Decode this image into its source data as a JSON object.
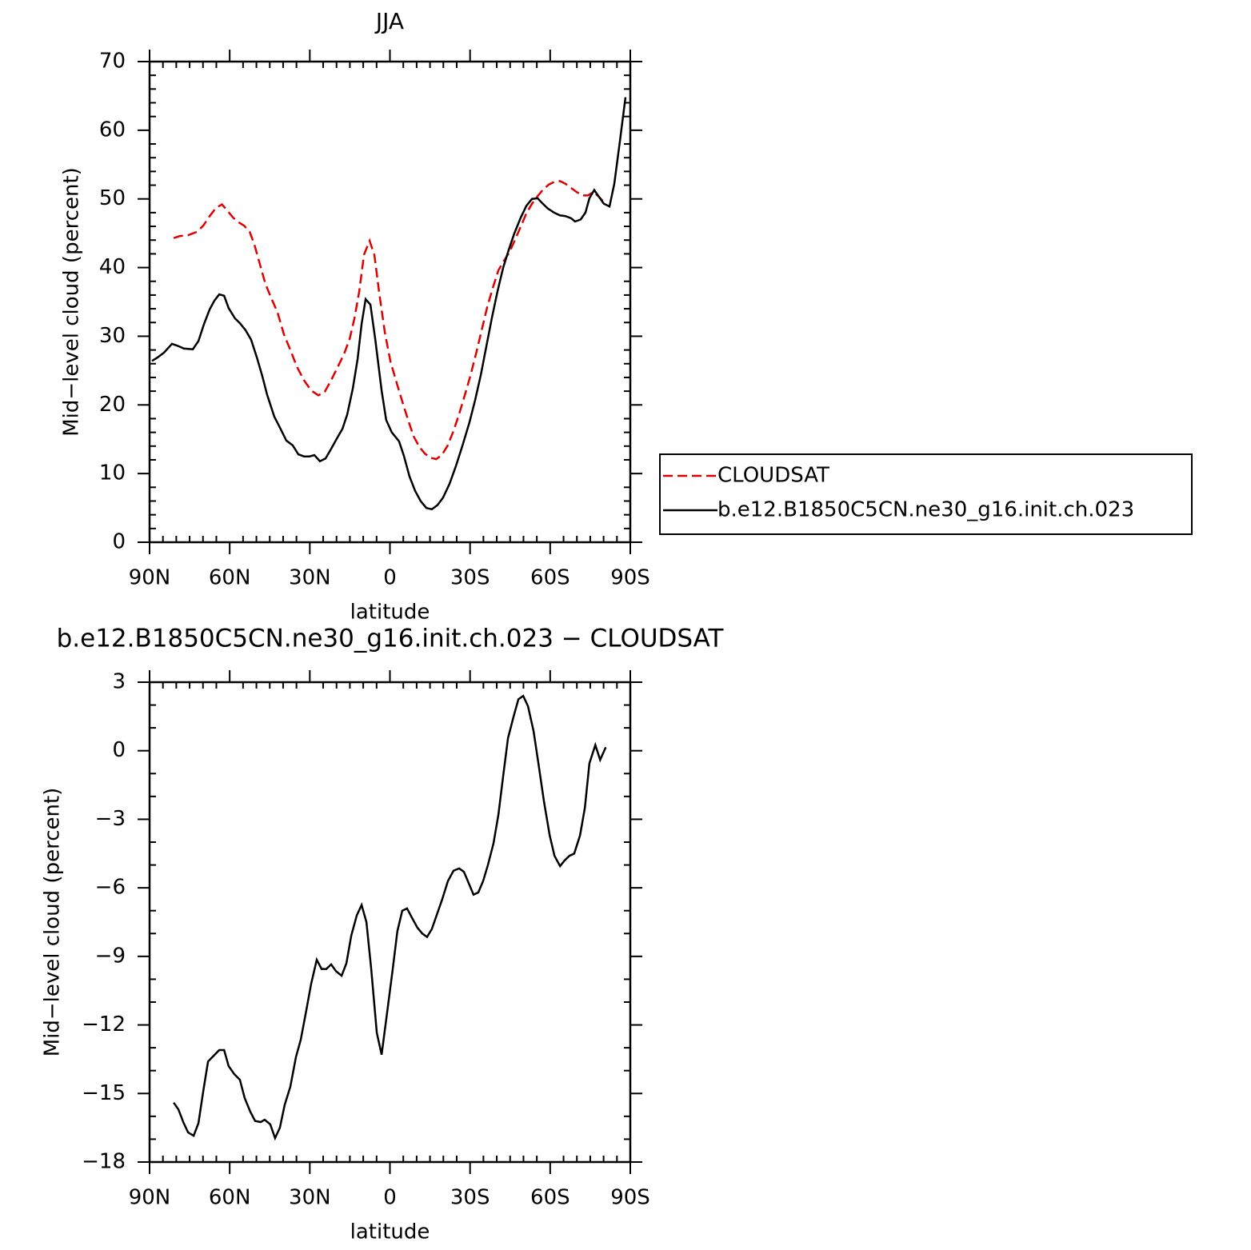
{
  "chart_data": [
    {
      "type": "line",
      "title": "JJA",
      "xlabel": "latitude",
      "ylabel": "Mid−level cloud (percent)",
      "xlim": [
        90,
        -90
      ],
      "xticks": [
        {
          "value": 90,
          "label": "90N"
        },
        {
          "value": 60,
          "label": "60N"
        },
        {
          "value": 30,
          "label": "30N"
        },
        0,
        {
          "value": -30,
          "label": "30S"
        },
        {
          "value": -60,
          "label": "60S"
        },
        {
          "value": -90,
          "label": "90S"
        }
      ],
      "ylim": [
        0,
        70
      ],
      "yticks": [
        0,
        10,
        20,
        30,
        40,
        50,
        60,
        70
      ],
      "legend": "outside-right",
      "series": [
        {
          "name": "CLOUDSAT",
          "color": "#e00000",
          "dash": true,
          "x": [
            81.0,
            78.6,
            75.6,
            72.3,
            69.9,
            67.5,
            65.1,
            62.9,
            60.9,
            58.8,
            56.7,
            54.6,
            52.5,
            50.8,
            48.7,
            46.6,
            44.4,
            42.1,
            39.7,
            37.3,
            34.9,
            32.2,
            29.5,
            26.8,
            24.4,
            22.0,
            19.6,
            17.2,
            15.1,
            13.3,
            11.5,
            9.7,
            7.6,
            5.8,
            4.0,
            1.9,
            -0.2,
            -2.6,
            -4.7,
            -6.8,
            -8.9,
            -11.0,
            -13.1,
            -15.2,
            -17.3,
            -19.4,
            -21.5,
            -23.6,
            -25.7,
            -27.8,
            -30.1,
            -32.2,
            -34.3,
            -36.4,
            -38.5,
            -40.6,
            -42.7,
            -44.8,
            -46.9,
            -49.0,
            -51.1,
            -53.2,
            -55.3,
            -57.4,
            -59.5,
            -61.6,
            -63.7,
            -65.7,
            -67.8,
            -69.9,
            -72.0,
            -74.1,
            -76.2,
            -78.3,
            -80.4
          ],
          "values": [
            44.3,
            44.6,
            44.7,
            45.2,
            46.1,
            47.5,
            48.7,
            49.2,
            48.3,
            47.3,
            46.6,
            46.1,
            45.2,
            43.4,
            40.5,
            37.6,
            35.5,
            33.5,
            30.3,
            28.0,
            25.6,
            23.6,
            22.1,
            21.4,
            21.9,
            23.6,
            25.5,
            27.4,
            29.6,
            32.6,
            36.5,
            41.9,
            43.9,
            41.8,
            36.3,
            30.5,
            26.3,
            23.1,
            20.4,
            17.8,
            15.4,
            13.9,
            12.9,
            12.3,
            12.1,
            12.7,
            14.0,
            16.0,
            18.4,
            21.1,
            24.2,
            27.4,
            30.8,
            34.2,
            37.0,
            39.6,
            41.0,
            42.3,
            44.1,
            46.0,
            47.9,
            49.3,
            50.4,
            51.4,
            52.1,
            52.5,
            52.6,
            52.2,
            51.6,
            51.0,
            50.5,
            50.5,
            51.0,
            50.3,
            49.4
          ]
        },
        {
          "name": "b.e12.B1850C5CN.ne30_g16.init.ch.023",
          "color": "#000000",
          "dash": false,
          "x": [
            89.1,
            87.0,
            84.6,
            81.6,
            79.5,
            77.1,
            73.8,
            71.7,
            69.6,
            67.5,
            65.7,
            63.9,
            62.1,
            60.4,
            58.0,
            56.2,
            54.1,
            52.0,
            49.9,
            47.8,
            46.0,
            43.3,
            41.2,
            38.8,
            36.4,
            34.3,
            32.2,
            30.1,
            28.3,
            26.2,
            24.1,
            22.0,
            19.6,
            17.8,
            16.0,
            13.9,
            12.1,
            10.6,
            9.1,
            7.3,
            5.5,
            3.1,
            1.4,
            -0.7,
            -3.4,
            -5.2,
            -7.3,
            -9.4,
            -11.5,
            -13.6,
            -15.7,
            -17.8,
            -19.9,
            -22.3,
            -24.7,
            -27.1,
            -29.8,
            -31.9,
            -34.0,
            -36.1,
            -38.2,
            -40.3,
            -42.4,
            -44.5,
            -46.6,
            -49.0,
            -51.1,
            -53.2,
            -55.3,
            -57.0,
            -59.1,
            -61.5,
            -63.6,
            -65.7,
            -67.8,
            -69.3,
            -71.4,
            -73.2,
            -74.7,
            -76.5,
            -78.3,
            -80.1,
            -82.2,
            -84.0,
            -86.1,
            -88.2
          ],
          "values": [
            26.4,
            26.9,
            27.6,
            28.9,
            28.6,
            28.2,
            28.1,
            29.3,
            31.8,
            33.9,
            35.2,
            36.1,
            35.9,
            34.1,
            32.6,
            31.9,
            30.9,
            29.5,
            27.0,
            24.2,
            21.5,
            18.3,
            16.7,
            14.8,
            14.1,
            12.8,
            12.5,
            12.5,
            12.7,
            11.8,
            12.2,
            13.6,
            15.3,
            16.5,
            18.6,
            22.4,
            26.7,
            31.8,
            35.4,
            34.6,
            29.6,
            22.1,
            17.8,
            16.0,
            14.7,
            12.6,
            9.6,
            7.5,
            6.0,
            5.0,
            4.8,
            5.4,
            6.5,
            8.5,
            11.1,
            14.0,
            17.5,
            20.7,
            24.3,
            28.5,
            32.7,
            36.6,
            40.0,
            42.6,
            45.0,
            47.3,
            49.0,
            50.0,
            50.1,
            49.4,
            48.6,
            48.0,
            47.6,
            47.5,
            47.2,
            46.7,
            47.0,
            48.0,
            50.1,
            51.3,
            50.3,
            49.3,
            48.9,
            52.2,
            58.4,
            64.8
          ]
        }
      ]
    },
    {
      "type": "line",
      "title": "b.e12.B1850C5CN.ne30_g16.init.ch.023 − CLOUDSAT",
      "xlabel": "latitude",
      "ylabel": "Mid−level cloud (percent)",
      "xlim": [
        90,
        -90
      ],
      "xticks": [
        {
          "value": 90,
          "label": "90N"
        },
        {
          "value": 60,
          "label": "60N"
        },
        {
          "value": 30,
          "label": "30N"
        },
        0,
        {
          "value": -30,
          "label": "30S"
        },
        {
          "value": -60,
          "label": "60S"
        },
        {
          "value": -90,
          "label": "90S"
        }
      ],
      "ylim": [
        -18,
        3
      ],
      "yticks": [
        {
          "value": -18,
          "label": "−18"
        },
        {
          "value": -15,
          "label": "−15"
        },
        {
          "value": -12,
          "label": "−12"
        },
        {
          "value": -9,
          "label": "−9"
        },
        {
          "value": -6,
          "label": "−6"
        },
        {
          "value": -3,
          "label": "−3"
        },
        0,
        3
      ],
      "series": [
        {
          "color": "#000000",
          "dash": false,
          "x": [
            81.0,
            79.2,
            77.4,
            75.6,
            73.5,
            71.7,
            69.9,
            68.1,
            66.0,
            63.9,
            62.1,
            60.4,
            58.3,
            56.2,
            54.4,
            52.3,
            50.5,
            48.4,
            46.9,
            44.8,
            43.0,
            41.2,
            39.4,
            37.3,
            35.2,
            33.4,
            31.3,
            29.5,
            27.4,
            25.6,
            23.8,
            22.0,
            20.2,
            18.1,
            16.3,
            14.5,
            12.4,
            10.6,
            8.8,
            7.0,
            4.9,
            3.1,
            1.0,
            -1.1,
            -2.8,
            -4.6,
            -6.4,
            -8.2,
            -10.3,
            -12.1,
            -13.9,
            -15.7,
            -17.5,
            -19.6,
            -21.7,
            -23.8,
            -25.9,
            -27.7,
            -29.5,
            -31.3,
            -33.1,
            -34.9,
            -36.7,
            -38.8,
            -40.6,
            -42.4,
            -44.2,
            -46.3,
            -48.1,
            -49.9,
            -51.7,
            -53.8,
            -55.6,
            -57.7,
            -59.8,
            -61.6,
            -63.7,
            -65.4,
            -67.2,
            -69.0,
            -71.2,
            -73.0,
            -74.7,
            -76.9,
            -78.7,
            -80.8
          ],
          "values": [
            -15.4,
            -15.7,
            -16.25,
            -16.7,
            -16.85,
            -16.3,
            -14.9,
            -13.6,
            -13.35,
            -13.1,
            -13.1,
            -13.8,
            -14.15,
            -14.4,
            -15.2,
            -15.8,
            -16.2,
            -16.25,
            -16.15,
            -16.35,
            -16.95,
            -16.5,
            -15.5,
            -14.7,
            -13.4,
            -12.65,
            -11.35,
            -10.2,
            -9.15,
            -9.55,
            -9.55,
            -9.35,
            -9.65,
            -9.85,
            -9.3,
            -8.1,
            -7.2,
            -6.75,
            -7.5,
            -9.55,
            -12.35,
            -13.3,
            -11.4,
            -9.5,
            -7.9,
            -7.0,
            -6.9,
            -7.3,
            -7.75,
            -8.0,
            -8.15,
            -7.8,
            -7.2,
            -6.5,
            -5.7,
            -5.25,
            -5.15,
            -5.3,
            -5.8,
            -6.3,
            -6.2,
            -5.7,
            -5.0,
            -4.05,
            -2.8,
            -1.1,
            0.55,
            1.5,
            2.25,
            2.4,
            1.95,
            0.85,
            -0.55,
            -2.25,
            -3.7,
            -4.6,
            -5.05,
            -4.8,
            -4.6,
            -4.5,
            -3.7,
            -2.5,
            -0.55,
            0.25,
            -0.4,
            0.15
          ]
        }
      ]
    }
  ]
}
